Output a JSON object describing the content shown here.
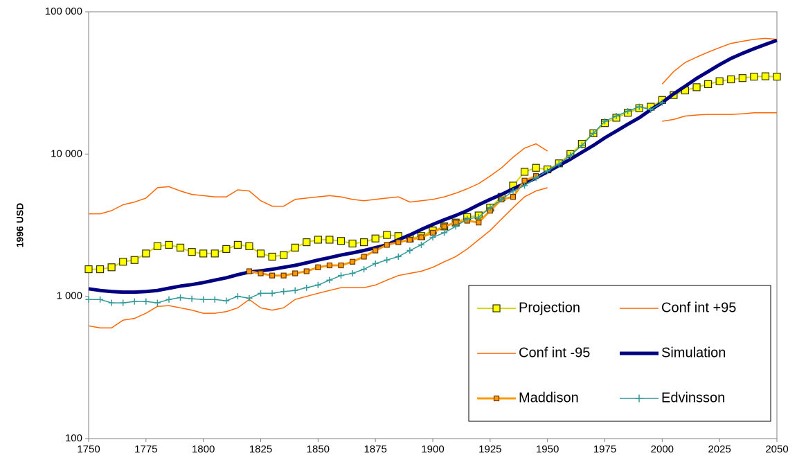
{
  "chart_data": {
    "type": "line",
    "y_label": "1996 USD",
    "log_scale": true,
    "xlim": [
      1750,
      2050
    ],
    "xticks": [
      1750,
      1775,
      1800,
      1825,
      1850,
      1875,
      1900,
      1925,
      1950,
      1975,
      2000,
      2025,
      2050
    ],
    "ylim": [
      100,
      100000
    ],
    "yticks": [
      100,
      {
        "value": 1000,
        "label": "1 000"
      },
      {
        "value": 10000,
        "label": "10 000"
      },
      {
        "value": 100000,
        "label": "100 000"
      }
    ],
    "legend": "lower right",
    "x": [
      1750,
      1755,
      1760,
      1765,
      1770,
      1775,
      1780,
      1785,
      1790,
      1795,
      1800,
      1805,
      1810,
      1815,
      1820,
      1825,
      1830,
      1835,
      1840,
      1845,
      1850,
      1855,
      1860,
      1865,
      1870,
      1875,
      1880,
      1885,
      1890,
      1895,
      1900,
      1905,
      1910,
      1915,
      1920,
      1925,
      1930,
      1935,
      1940,
      1945,
      1950,
      1955,
      1960,
      1965,
      1970,
      1975,
      1980,
      1985,
      1990,
      1995,
      2000,
      2005,
      2010,
      2015,
      2020,
      2025,
      2030,
      2035,
      2040,
      2045,
      2050
    ],
    "series": [
      {
        "name": "Projection",
        "color": "#d8d800",
        "marker": "square",
        "marker_fill": "#ffff00",
        "line_width": 2,
        "values": [
          1550,
          1550,
          1600,
          1750,
          1800,
          2000,
          2250,
          2300,
          2200,
          2050,
          2000,
          2000,
          2150,
          2300,
          2250,
          2000,
          1900,
          1950,
          2200,
          2400,
          2500,
          2500,
          2450,
          2350,
          2400,
          2550,
          2700,
          2650,
          2550,
          2650,
          2900,
          3100,
          3300,
          3600,
          3700,
          4200,
          5000,
          6000,
          7500,
          8000,
          7800,
          8600,
          10000,
          11800,
          14000,
          16500,
          18000,
          19500,
          21000,
          21500,
          24000,
          26000,
          28000,
          29500,
          31000,
          32500,
          33500,
          34200,
          35000,
          35200,
          35000
        ]
      },
      {
        "name": "Conf int +95",
        "color": "#ff6600",
        "line_width": 1.5,
        "values": [
          3800,
          3800,
          4000,
          4400,
          4600,
          4900,
          5800,
          5900,
          5500,
          5200,
          5100,
          5000,
          5000,
          5600,
          5500,
          4700,
          4300,
          4300,
          4800,
          4900,
          5000,
          5100,
          5000,
          4800,
          4700,
          4800,
          4900,
          5000,
          4600,
          4700,
          4800,
          5000,
          5300,
          5700,
          6200,
          7000,
          8000,
          9500,
          11000,
          11800,
          10500,
          null,
          null,
          null,
          null,
          null,
          null,
          null,
          null,
          null,
          31000,
          38000,
          44000,
          48000,
          52000,
          56000,
          60000,
          62000,
          64000,
          65000,
          64000
        ]
      },
      {
        "name": "Conf int -95",
        "color": "#ff6600",
        "line_width": 1.5,
        "values": [
          620,
          600,
          600,
          680,
          700,
          760,
          850,
          860,
          830,
          800,
          760,
          760,
          780,
          830,
          950,
          830,
          800,
          830,
          950,
          1000,
          1050,
          1100,
          1150,
          1150,
          1150,
          1200,
          1300,
          1400,
          1450,
          1500,
          1600,
          1750,
          1900,
          2150,
          2500,
          2900,
          3500,
          4200,
          5000,
          5500,
          5800,
          null,
          null,
          null,
          null,
          null,
          null,
          null,
          null,
          null,
          17000,
          17500,
          18500,
          18800,
          19000,
          19000,
          19000,
          19200,
          19500,
          19500,
          19500
        ]
      },
      {
        "name": "Simulation",
        "color": "#000080",
        "line_width": 5,
        "values": [
          1130,
          1100,
          1080,
          1070,
          1070,
          1080,
          1100,
          1140,
          1180,
          1210,
          1250,
          1300,
          1350,
          1420,
          1480,
          1510,
          1550,
          1600,
          1650,
          1720,
          1800,
          1870,
          1950,
          2020,
          2100,
          2200,
          2300,
          2500,
          2700,
          2950,
          3200,
          3450,
          3700,
          4000,
          4400,
          4800,
          5200,
          5700,
          6200,
          6800,
          7500,
          8300,
          9200,
          10300,
          11500,
          13000,
          14500,
          16200,
          18000,
          20500,
          23000,
          26500,
          30000,
          34000,
          38000,
          42500,
          47000,
          51000,
          55000,
          59000,
          63000
        ]
      },
      {
        "name": "Maddison",
        "color": "#ff9900",
        "marker": "square",
        "marker_fill": "#ff9900",
        "line_width": 3,
        "values": [
          null,
          null,
          null,
          null,
          null,
          null,
          null,
          null,
          null,
          null,
          null,
          null,
          null,
          null,
          1500,
          1450,
          1400,
          1400,
          1450,
          1500,
          1600,
          1650,
          1650,
          1750,
          1900,
          2100,
          2300,
          2400,
          2500,
          2600,
          2800,
          3100,
          3300,
          3400,
          3300,
          4000,
          4800,
          5000,
          6500,
          7000,
          null,
          null,
          null,
          null,
          null,
          null,
          null,
          null,
          null,
          null,
          null,
          null,
          null,
          null,
          null,
          null,
          null,
          null,
          null,
          null,
          null
        ]
      },
      {
        "name": "Edvinsson",
        "color": "#339999",
        "marker": "plus",
        "line_width": 1.5,
        "values": [
          950,
          950,
          900,
          900,
          920,
          920,
          900,
          950,
          980,
          960,
          950,
          950,
          930,
          1000,
          970,
          1050,
          1050,
          1080,
          1100,
          1150,
          1200,
          1300,
          1400,
          1450,
          1550,
          1700,
          1800,
          1900,
          2100,
          2300,
          2600,
          2800,
          3100,
          3500,
          3600,
          4200,
          4800,
          5500,
          6000,
          6800,
          7600,
          8500,
          9800,
          11500,
          14000,
          17000,
          18500,
          20000,
          21500,
          20500,
          23000,
          null,
          null,
          null,
          null,
          null,
          null,
          null,
          null,
          null,
          null
        ]
      }
    ]
  }
}
